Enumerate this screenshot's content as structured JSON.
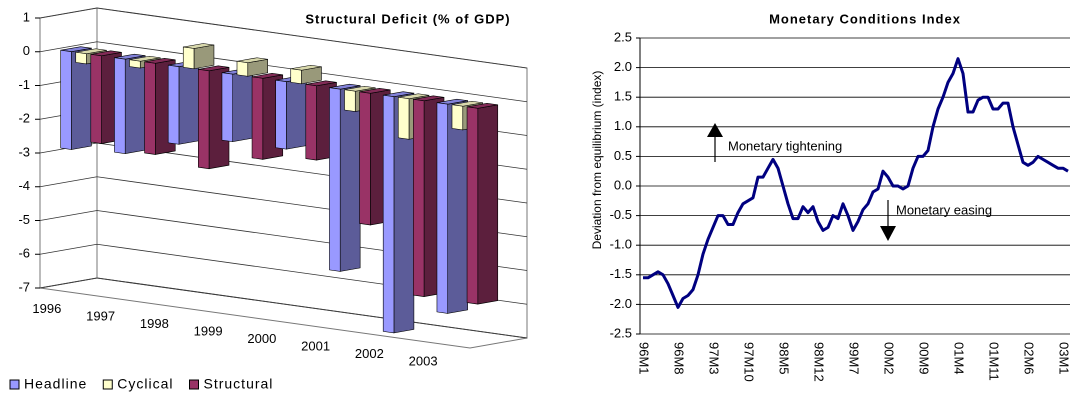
{
  "chart_data": [
    {
      "type": "bar3d",
      "title": "Structural Deficit (% of GDP)",
      "categories": [
        "1996",
        "1997",
        "1998",
        "1999",
        "2000",
        "2001",
        "2002",
        "2003"
      ],
      "series": [
        {
          "name": "Headline",
          "color": "#9999ff",
          "values": [
            -2.9,
            -2.8,
            -2.3,
            -2.0,
            -2.0,
            -5.4,
            -7.0,
            -6.2
          ]
        },
        {
          "name": "Cyclical",
          "color": "#ffffcc",
          "values": [
            -0.3,
            -0.2,
            0.6,
            0.4,
            0.4,
            -0.6,
            -1.2,
            -0.7
          ]
        },
        {
          "name": "Structural",
          "color": "#993366",
          "values": [
            -2.6,
            -2.7,
            -2.9,
            -2.4,
            -2.2,
            -3.9,
            -5.8,
            -5.8
          ]
        }
      ],
      "ylim": [
        -7,
        1
      ],
      "yticks": [
        1,
        0,
        -1,
        -2,
        -3,
        -4,
        -5,
        -6,
        -7
      ],
      "grid": true,
      "legend": "bottom"
    },
    {
      "type": "line",
      "title": "Monetary Conditions Index",
      "y_label": "Deviation from equilibrium (index)",
      "annotations": [
        "Monetary tightening",
        "Monetary easing"
      ],
      "categories": [
        "96M1",
        null,
        null,
        null,
        null,
        null,
        null,
        "96M8",
        null,
        null,
        null,
        null,
        null,
        null,
        "97M3",
        null,
        null,
        null,
        null,
        null,
        null,
        "97M10",
        null,
        null,
        null,
        null,
        null,
        null,
        "98M5",
        null,
        null,
        null,
        null,
        null,
        null,
        "98M12",
        null,
        null,
        null,
        null,
        null,
        null,
        "99M7",
        null,
        null,
        null,
        null,
        null,
        null,
        "00M2",
        null,
        null,
        null,
        null,
        null,
        null,
        "00M9",
        null,
        null,
        null,
        null,
        null,
        null,
        "01M4",
        null,
        null,
        null,
        null,
        null,
        null,
        "01M11",
        null,
        null,
        null,
        null,
        null,
        null,
        "02M6",
        null,
        null,
        null,
        null,
        null,
        null,
        "03M1",
        null
      ],
      "series": [
        {
          "name": "Monetary Conditions Index",
          "color": "#000080",
          "values": [
            -1.55,
            -1.55,
            -1.5,
            -1.45,
            -1.5,
            -1.65,
            -1.85,
            -2.05,
            -1.9,
            -1.85,
            -1.75,
            -1.5,
            -1.15,
            -0.9,
            -0.7,
            -0.5,
            -0.5,
            -0.65,
            -0.65,
            -0.45,
            -0.3,
            -0.25,
            -0.2,
            0.15,
            0.15,
            0.3,
            0.45,
            0.3,
            0.0,
            -0.3,
            -0.55,
            -0.55,
            -0.35,
            -0.45,
            -0.35,
            -0.6,
            -0.75,
            -0.7,
            -0.5,
            -0.55,
            -0.3,
            -0.5,
            -0.75,
            -0.6,
            -0.4,
            -0.3,
            -0.1,
            -0.05,
            0.25,
            0.15,
            0.0,
            0.0,
            -0.05,
            0.0,
            0.3,
            0.5,
            0.5,
            0.6,
            1.0,
            1.3,
            1.5,
            1.75,
            1.9,
            2.15,
            1.9,
            1.25,
            1.25,
            1.45,
            1.5,
            1.5,
            1.3,
            1.3,
            1.4,
            1.4,
            1.0,
            0.7,
            0.4,
            0.35,
            0.4,
            0.5,
            0.45,
            0.4,
            0.35,
            0.3,
            0.3,
            0.25
          ]
        }
      ],
      "ylim": [
        -2.5,
        2.5
      ],
      "yticks": [
        2.5,
        {
          "value": 2,
          "label": "2.0"
        },
        1.5,
        {
          "value": 1,
          "label": "1.0"
        },
        0.5,
        {
          "value": 0,
          "label": "0.0"
        },
        -0.5,
        {
          "value": -1,
          "label": "-1.0"
        },
        -1.5,
        {
          "value": -2,
          "label": "-2.0"
        },
        -2.5
      ],
      "grid": true
    }
  ]
}
